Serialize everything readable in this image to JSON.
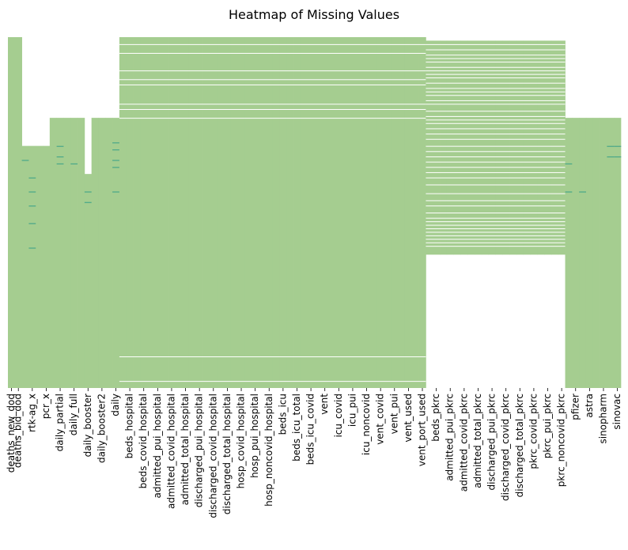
{
  "chart_data": {
    "type": "heatmap",
    "title": "Heatmap of Missing Values",
    "xlabel": "",
    "ylabel": "",
    "colors": {
      "present": "#a5cd90",
      "missing": "#ffffff",
      "accent_line": "#2a9a87"
    },
    "colorbar": false,
    "columns": [
      {
        "name": "deaths_new_dod",
        "label": true,
        "present": [
          [
            0,
            1
          ]
        ]
      },
      {
        "name": "deaths_bid_dod",
        "label": true,
        "present": [
          [
            0,
            1
          ]
        ]
      },
      {
        "name": "",
        "label": false,
        "present": [
          [
            0.31,
            1
          ]
        ],
        "accent": [
          0.35
        ]
      },
      {
        "name": "rtk-ag_x",
        "label": true,
        "present": [
          [
            0.31,
            1
          ]
        ],
        "accent": [
          0.4,
          0.44,
          0.48,
          0.53,
          0.6
        ]
      },
      {
        "name": "",
        "label": false,
        "present": [
          [
            0.31,
            1
          ]
        ]
      },
      {
        "name": "pcr_x",
        "label": true,
        "present": [
          [
            0.31,
            1
          ]
        ]
      },
      {
        "name": "",
        "label": false,
        "present": [
          [
            0.23,
            1
          ]
        ]
      },
      {
        "name": "daily_partial",
        "label": true,
        "present": [
          [
            0.23,
            1
          ]
        ],
        "accent": [
          0.31,
          0.34,
          0.36
        ]
      },
      {
        "name": "",
        "label": false,
        "present": [
          [
            0.23,
            1
          ]
        ]
      },
      {
        "name": "daily_full",
        "label": true,
        "present": [
          [
            0.23,
            1
          ]
        ],
        "accent": [
          0.36
        ]
      },
      {
        "name": "",
        "label": false,
        "present": [
          [
            0.23,
            1
          ]
        ]
      },
      {
        "name": "daily_booster",
        "label": true,
        "present": [
          [
            0.39,
            1
          ]
        ],
        "accent": [
          0.44,
          0.47
        ]
      },
      {
        "name": "",
        "label": false,
        "present": [
          [
            0.23,
            1
          ]
        ]
      },
      {
        "name": "daily_booster2",
        "label": true,
        "present": [
          [
            0.23,
            1
          ]
        ]
      },
      {
        "name": "",
        "label": false,
        "present": [
          [
            0.23,
            1
          ]
        ]
      },
      {
        "name": "daily",
        "label": true,
        "present": [
          [
            0.23,
            1
          ]
        ],
        "accent": [
          0.3,
          0.32,
          0.35,
          0.37,
          0.44
        ]
      },
      {
        "name": "",
        "label": false,
        "present": [
          [
            0,
            1
          ]
        ]
      },
      {
        "name": "beds_hospital",
        "label": true,
        "present": [
          [
            0,
            1
          ]
        ]
      },
      {
        "name": "",
        "label": false,
        "present": [
          [
            0,
            1
          ]
        ]
      },
      {
        "name": "beds_covid_hospital",
        "label": true,
        "present": [
          [
            0,
            1
          ]
        ]
      },
      {
        "name": "",
        "label": false,
        "present": [
          [
            0,
            1
          ]
        ]
      },
      {
        "name": "admitted_pui_hospital",
        "label": true,
        "present": [
          [
            0,
            1
          ]
        ]
      },
      {
        "name": "",
        "label": false,
        "present": [
          [
            0,
            1
          ]
        ]
      },
      {
        "name": "admitted_covid_hospital",
        "label": true,
        "present": [
          [
            0,
            1
          ]
        ]
      },
      {
        "name": "",
        "label": false,
        "present": [
          [
            0,
            1
          ]
        ]
      },
      {
        "name": "admitted_total_hospital",
        "label": true,
        "present": [
          [
            0,
            1
          ]
        ]
      },
      {
        "name": "",
        "label": false,
        "present": [
          [
            0,
            1
          ]
        ]
      },
      {
        "name": "discharged_pui_hospital",
        "label": true,
        "present": [
          [
            0,
            1
          ]
        ]
      },
      {
        "name": "",
        "label": false,
        "present": [
          [
            0,
            1
          ]
        ]
      },
      {
        "name": "discharged_covid_hospital",
        "label": true,
        "present": [
          [
            0,
            1
          ]
        ]
      },
      {
        "name": "",
        "label": false,
        "present": [
          [
            0,
            1
          ]
        ]
      },
      {
        "name": "discharged_total_hospital",
        "label": true,
        "present": [
          [
            0,
            1
          ]
        ]
      },
      {
        "name": "",
        "label": false,
        "present": [
          [
            0,
            1
          ]
        ]
      },
      {
        "name": "hosp_covid_hospital",
        "label": true,
        "present": [
          [
            0,
            1
          ]
        ]
      },
      {
        "name": "",
        "label": false,
        "present": [
          [
            0,
            1
          ]
        ]
      },
      {
        "name": "hosp_pui_hospital",
        "label": true,
        "present": [
          [
            0,
            1
          ]
        ]
      },
      {
        "name": "",
        "label": false,
        "present": [
          [
            0,
            1
          ]
        ]
      },
      {
        "name": "hosp_noncovid_hospital",
        "label": true,
        "present": [
          [
            0,
            1
          ]
        ]
      },
      {
        "name": "",
        "label": false,
        "present": [
          [
            0,
            1
          ]
        ]
      },
      {
        "name": "beds_icu",
        "label": true,
        "present": [
          [
            0,
            1
          ]
        ]
      },
      {
        "name": "",
        "label": false,
        "present": [
          [
            0,
            1
          ]
        ]
      },
      {
        "name": "beds_icu_total",
        "label": true,
        "present": [
          [
            0,
            1
          ]
        ]
      },
      {
        "name": "",
        "label": false,
        "present": [
          [
            0,
            1
          ]
        ]
      },
      {
        "name": "beds_icu_covid",
        "label": true,
        "present": [
          [
            0,
            1
          ]
        ]
      },
      {
        "name": "",
        "label": false,
        "present": [
          [
            0,
            1
          ]
        ]
      },
      {
        "name": "vent",
        "label": true,
        "present": [
          [
            0,
            1
          ]
        ]
      },
      {
        "name": "",
        "label": false,
        "present": [
          [
            0,
            1
          ]
        ]
      },
      {
        "name": "icu_covid",
        "label": true,
        "present": [
          [
            0,
            1
          ]
        ]
      },
      {
        "name": "",
        "label": false,
        "present": [
          [
            0,
            1
          ]
        ]
      },
      {
        "name": "icu_pui",
        "label": true,
        "present": [
          [
            0,
            1
          ]
        ]
      },
      {
        "name": "",
        "label": false,
        "present": [
          [
            0,
            1
          ]
        ]
      },
      {
        "name": "icu_noncovid",
        "label": true,
        "present": [
          [
            0,
            1
          ]
        ]
      },
      {
        "name": "",
        "label": false,
        "present": [
          [
            0,
            1
          ]
        ]
      },
      {
        "name": "vent_covid",
        "label": true,
        "present": [
          [
            0,
            1
          ]
        ]
      },
      {
        "name": "",
        "label": false,
        "present": [
          [
            0,
            1
          ]
        ]
      },
      {
        "name": "vent_pui",
        "label": true,
        "present": [
          [
            0,
            1
          ]
        ]
      },
      {
        "name": "",
        "label": false,
        "present": [
          [
            0,
            1
          ]
        ]
      },
      {
        "name": "vent_used",
        "label": true,
        "present": [
          [
            0,
            1
          ]
        ]
      },
      {
        "name": "",
        "label": false,
        "present": [
          [
            0,
            1
          ]
        ]
      },
      {
        "name": "vent_port_used",
        "label": true,
        "present": [
          [
            0,
            1
          ]
        ]
      },
      {
        "name": "",
        "label": false,
        "present": [
          [
            0.01,
            0.62
          ]
        ]
      },
      {
        "name": "beds_pkrc",
        "label": true,
        "present": [
          [
            0.01,
            0.62
          ]
        ]
      },
      {
        "name": "",
        "label": false,
        "present": [
          [
            0.01,
            0.62
          ]
        ]
      },
      {
        "name": "admitted_pui_pkrc",
        "label": true,
        "present": [
          [
            0.01,
            0.62
          ]
        ]
      },
      {
        "name": "",
        "label": false,
        "present": [
          [
            0.01,
            0.62
          ]
        ]
      },
      {
        "name": "admitted_covid_pkrc",
        "label": true,
        "present": [
          [
            0.01,
            0.62
          ]
        ]
      },
      {
        "name": "",
        "label": false,
        "present": [
          [
            0.01,
            0.62
          ]
        ]
      },
      {
        "name": "admitted_total_pkrc",
        "label": true,
        "present": [
          [
            0.01,
            0.62
          ]
        ]
      },
      {
        "name": "",
        "label": false,
        "present": [
          [
            0.01,
            0.62
          ]
        ]
      },
      {
        "name": "discharged_pui_pkrc",
        "label": true,
        "present": [
          [
            0.01,
            0.62
          ]
        ]
      },
      {
        "name": "",
        "label": false,
        "present": [
          [
            0.01,
            0.62
          ]
        ]
      },
      {
        "name": "discharged_covid_pkrc",
        "label": true,
        "present": [
          [
            0.01,
            0.62
          ]
        ]
      },
      {
        "name": "",
        "label": false,
        "present": [
          [
            0.01,
            0.62
          ]
        ]
      },
      {
        "name": "discharged_total_pkrc",
        "label": true,
        "present": [
          [
            0.01,
            0.62
          ]
        ]
      },
      {
        "name": "",
        "label": false,
        "present": [
          [
            0.01,
            0.62
          ]
        ]
      },
      {
        "name": "pkrc_covid_pkrc",
        "label": true,
        "present": [
          [
            0.01,
            0.62
          ]
        ]
      },
      {
        "name": "",
        "label": false,
        "present": [
          [
            0.01,
            0.62
          ]
        ]
      },
      {
        "name": "pkrc_pui_pkrc",
        "label": true,
        "present": [
          [
            0.01,
            0.62
          ]
        ]
      },
      {
        "name": "",
        "label": false,
        "present": [
          [
            0.01,
            0.62
          ]
        ]
      },
      {
        "name": "pkrc_noncovid_pkrc",
        "label": true,
        "present": [
          [
            0.01,
            0.62
          ]
        ]
      },
      {
        "name": "",
        "label": false,
        "present": [
          [
            0.23,
            1
          ]
        ],
        "accent": [
          0.36,
          0.44
        ]
      },
      {
        "name": "pfizer",
        "label": true,
        "present": [
          [
            0.23,
            1
          ]
        ]
      },
      {
        "name": "",
        "label": false,
        "present": [
          [
            0.23,
            1
          ]
        ],
        "accent": [
          0.44
        ]
      },
      {
        "name": "astra",
        "label": true,
        "present": [
          [
            0.23,
            1
          ]
        ]
      },
      {
        "name": "",
        "label": false,
        "present": [
          [
            0.23,
            1
          ]
        ]
      },
      {
        "name": "sinopharm",
        "label": true,
        "present": [
          [
            0.23,
            1
          ]
        ]
      },
      {
        "name": "",
        "label": false,
        "present": [
          [
            0.23,
            1
          ]
        ],
        "accent": [
          0.31,
          0.34
        ]
      },
      {
        "name": "sinovac",
        "label": true,
        "present": [
          [
            0.23,
            1
          ]
        ],
        "accent": [
          0.31,
          0.34
        ]
      }
    ],
    "missing_row_lines": {
      "hospital_block": [
        0.02,
        0.045,
        0.095,
        0.12,
        0.135,
        0.19,
        0.205,
        0.23,
        0.91,
        0.98
      ],
      "pkrc_block": [
        0.02,
        0.035,
        0.05,
        0.06,
        0.07,
        0.085,
        0.095,
        0.105,
        0.115,
        0.13,
        0.145,
        0.155,
        0.165,
        0.18,
        0.19,
        0.21,
        0.225,
        0.235,
        0.245,
        0.26,
        0.275,
        0.29,
        0.31,
        0.325,
        0.34,
        0.355,
        0.37,
        0.385,
        0.4,
        0.42,
        0.445,
        0.465,
        0.48,
        0.5,
        0.515,
        0.525,
        0.535,
        0.545,
        0.555,
        0.565,
        0.575,
        0.585,
        0.595
      ]
    }
  }
}
